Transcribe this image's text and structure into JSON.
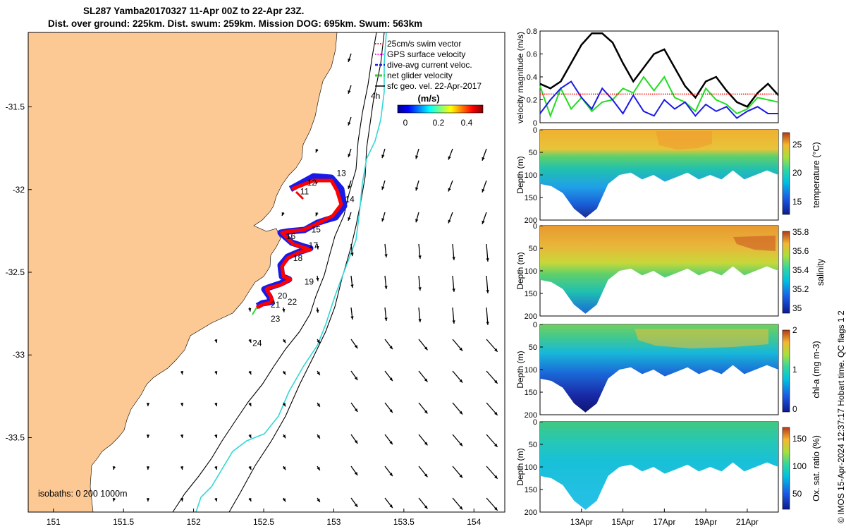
{
  "title": {
    "line1": "SL287 Yamba20170327 11-Apr 00Z to 22-Apr 23Z.",
    "line2": "Dist. over ground: 225km. Dist. swum: 259km. Mission DOG: 695km. Swum: 563km"
  },
  "footer_note": "© IMOS 15-Apr-2024 12:37:17 Hobart time. QC flags 1  2",
  "colors": {
    "land": "#fcc995",
    "track_red": "#ff0000",
    "track_blue": "#1a1ae6",
    "track_green": "#22dd22",
    "isobath": "#000000",
    "surface_line": "#33d6d6",
    "speed_black": "#000000",
    "speed_green": "#22dd22",
    "speed_blue": "#1a1ae6",
    "swim_red": "#ff0000"
  },
  "chart_data": [
    {
      "type": "map",
      "name": "glider-track-map",
      "x_ticks": [
        151,
        151.5,
        152,
        152.5,
        153,
        153.5,
        154
      ],
      "x_tick_labels": [
        "151",
        "151.5",
        "152",
        "152.5",
        "153",
        "153.5",
        "154"
      ],
      "y_ticks": [
        -31.5,
        -32,
        -32.5,
        -33,
        -33.5
      ],
      "y_tick_labels": [
        "-31.5",
        "-32",
        "-32.5",
        "-33",
        "-33.5"
      ],
      "xlim": [
        150.82,
        154.22
      ],
      "ylim": [
        -33.95,
        -31.05
      ],
      "legend": [
        {
          "label": "25cm/s swim vector",
          "color": "#ff0000",
          "style": "dots"
        },
        {
          "label": "GPS surface velocity",
          "color": "#ff00ff",
          "style": "dots"
        },
        {
          "label": "dive-avg current veloc.",
          "color": "#1a1ae6",
          "style": "dash"
        },
        {
          "label": "net glider velocity",
          "color": "#22dd22",
          "style": "dash"
        },
        {
          "label": "sfc geo. vel. 22-Apr-2017",
          "color": "#000000",
          "style": "line"
        }
      ],
      "colorbar": {
        "label": "(m/s)",
        "ticks": [
          "0",
          "0.2",
          "0.4"
        ],
        "range": [
          0,
          0.5
        ]
      },
      "isobath_label": "isobaths: 0  200  1000m",
      "annotations": [
        "4h"
      ],
      "track_points": [
        {
          "lon": 152.72,
          "lat": -31.97,
          "day": "11"
        },
        {
          "lon": 152.78,
          "lat": -31.95,
          "day": "12"
        },
        {
          "lon": 152.96,
          "lat": -31.91,
          "day": "13"
        },
        {
          "lon": 153.03,
          "lat": -32.05,
          "day": "14"
        },
        {
          "lon": 152.85,
          "lat": -32.19,
          "day": "15"
        },
        {
          "lon": 152.71,
          "lat": -32.24,
          "day": "16"
        },
        {
          "lon": 152.8,
          "lat": -32.32,
          "day": "17"
        },
        {
          "lon": 152.7,
          "lat": -32.38,
          "day": "18"
        },
        {
          "lon": 152.75,
          "lat": -32.55,
          "day": "19"
        },
        {
          "lon": 152.58,
          "lat": -32.6,
          "day": "20"
        },
        {
          "lon": 152.55,
          "lat": -32.67,
          "day": "21"
        },
        {
          "lon": 152.63,
          "lat": -32.68,
          "day": "22"
        },
        {
          "lon": 152.52,
          "lat": -32.73,
          "day": "23"
        },
        {
          "lon": 152.44,
          "lat": -32.8,
          "day": "24"
        }
      ]
    },
    {
      "type": "line",
      "name": "velocity-magnitude",
      "ylabel": "velocity magnitude (m/s)",
      "ylim": [
        0,
        0.8
      ],
      "y_ticks": [
        "0",
        "0.2",
        "0.4",
        "0.6",
        "0.8"
      ],
      "xlim_days": [
        11,
        22.5
      ],
      "series": [
        {
          "name": "sfc geo. vel.",
          "color": "#000000",
          "x": [
            11.0,
            11.5,
            12.0,
            12.5,
            13.0,
            13.5,
            14.0,
            14.5,
            15.0,
            15.5,
            16.0,
            16.5,
            17.0,
            17.5,
            18.0,
            18.5,
            19.0,
            19.5,
            20.0,
            20.5,
            21.0,
            21.5,
            22.0,
            22.5
          ],
          "y": [
            0.34,
            0.3,
            0.36,
            0.52,
            0.68,
            0.78,
            0.78,
            0.7,
            0.52,
            0.36,
            0.48,
            0.6,
            0.64,
            0.48,
            0.32,
            0.22,
            0.36,
            0.4,
            0.28,
            0.18,
            0.14,
            0.26,
            0.34,
            0.24
          ]
        },
        {
          "name": "net glider velocity",
          "color": "#22dd22",
          "x": [
            11.0,
            11.5,
            12.0,
            12.5,
            13.0,
            13.5,
            14.0,
            14.5,
            15.0,
            15.5,
            16.0,
            16.5,
            17.0,
            17.5,
            18.0,
            18.5,
            19.0,
            19.5,
            20.0,
            20.5,
            21.0,
            21.5,
            22.0,
            22.5
          ],
          "y": [
            0.32,
            0.06,
            0.3,
            0.12,
            0.22,
            0.1,
            0.18,
            0.2,
            0.3,
            0.26,
            0.4,
            0.28,
            0.4,
            0.22,
            0.18,
            0.1,
            0.3,
            0.2,
            0.16,
            0.08,
            0.12,
            0.22,
            0.2,
            0.18
          ]
        },
        {
          "name": "dive-avg current veloc.",
          "color": "#1a1ae6",
          "x": [
            11.0,
            11.5,
            12.0,
            12.5,
            13.0,
            13.5,
            14.0,
            14.5,
            15.0,
            15.5,
            16.0,
            16.5,
            17.0,
            17.5,
            18.0,
            18.5,
            19.0,
            19.5,
            20.0,
            20.5,
            21.0,
            21.5,
            22.0,
            22.5
          ],
          "y": [
            0.08,
            0.2,
            0.3,
            0.36,
            0.22,
            0.12,
            0.3,
            0.2,
            0.08,
            0.24,
            0.1,
            0.06,
            0.2,
            0.12,
            0.18,
            0.06,
            0.16,
            0.1,
            0.14,
            0.04,
            0.1,
            0.14,
            0.08,
            0.08
          ]
        },
        {
          "name": "25cm/s swim",
          "color": "#ff0000",
          "x": [
            11.0,
            22.5
          ],
          "y": [
            0.25,
            0.25
          ]
        }
      ]
    },
    {
      "type": "heatmap",
      "name": "temperature-section",
      "ylabel": "Depth (m)",
      "y_ticks": [
        "0",
        "50",
        "100",
        "150",
        "200"
      ],
      "ylim": [
        0,
        200
      ],
      "colorbar_label": "temperature (°C)",
      "colorbar_ticks": [
        "15",
        "20",
        "25"
      ],
      "crange": [
        12.5,
        27.5
      ],
      "profile_depth_m": [
        120,
        125,
        140,
        175,
        195,
        175,
        120,
        100,
        95,
        110,
        100,
        115,
        105,
        95,
        110,
        100,
        110,
        90,
        110,
        100,
        90,
        100
      ]
    },
    {
      "type": "heatmap",
      "name": "salinity-section",
      "ylabel": "Depth (m)",
      "y_ticks": [
        "0",
        "50",
        "100",
        "150",
        "200"
      ],
      "ylim": [
        0,
        200
      ],
      "colorbar_label": "salinity",
      "colorbar_ticks": [
        "35",
        "35.2",
        "35.4",
        "35.6",
        "35.8"
      ],
      "crange": [
        34.95,
        35.8
      ],
      "profile_depth_m": [
        120,
        125,
        140,
        175,
        195,
        175,
        120,
        100,
        95,
        110,
        100,
        115,
        105,
        95,
        110,
        100,
        110,
        90,
        110,
        100,
        90,
        100
      ]
    },
    {
      "type": "heatmap",
      "name": "chlorophyll-section",
      "ylabel": "Depth (m)",
      "y_ticks": [
        "0",
        "50",
        "100",
        "150",
        "200"
      ],
      "ylim": [
        0,
        200
      ],
      "colorbar_label": "chl-a (mg m-3)",
      "colorbar_ticks": [
        "0",
        "1",
        "2"
      ],
      "crange": [
        0,
        2
      ],
      "profile_depth_m": [
        120,
        125,
        140,
        175,
        195,
        175,
        120,
        100,
        95,
        110,
        100,
        115,
        105,
        95,
        110,
        100,
        110,
        90,
        110,
        100,
        90,
        100
      ]
    },
    {
      "type": "heatmap",
      "name": "oxygen-section",
      "ylabel": "Depth (m)",
      "y_ticks": [
        "0",
        "50",
        "100",
        "150",
        "200"
      ],
      "ylim": [
        0,
        200
      ],
      "colorbar_label": "Ox. sat. ratio (%)",
      "colorbar_ticks": [
        "50",
        "100",
        "150"
      ],
      "crange": [
        25,
        175
      ],
      "profile_depth_m": [
        120,
        125,
        140,
        175,
        195,
        175,
        120,
        100,
        95,
        110,
        100,
        115,
        105,
        95,
        110,
        100,
        110,
        90,
        110,
        100,
        90,
        100
      ],
      "x_ticks_days": [
        13,
        15,
        17,
        19,
        21
      ],
      "x_tick_labels": [
        "13Apr",
        "15Apr",
        "17Apr",
        "19Apr",
        "21Apr"
      ]
    }
  ]
}
